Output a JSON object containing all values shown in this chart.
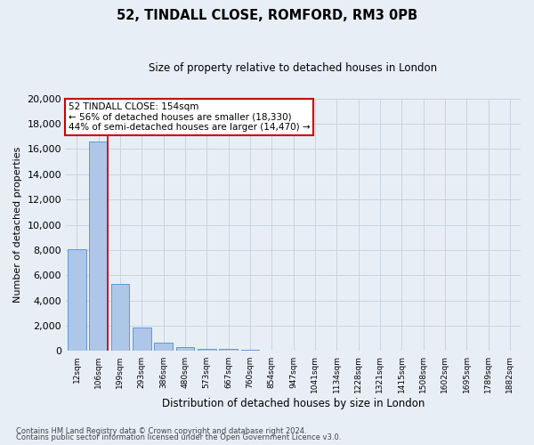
{
  "title": "52, TINDALL CLOSE, ROMFORD, RM3 0PB",
  "subtitle": "Size of property relative to detached houses in London",
  "xlabel": "Distribution of detached houses by size in London",
  "ylabel": "Number of detached properties",
  "footer_line1": "Contains HM Land Registry data © Crown copyright and database right 2024.",
  "footer_line2": "Contains public sector information licensed under the Open Government Licence v3.0.",
  "annotation_title": "52 TINDALL CLOSE: 154sqm",
  "annotation_line1": "← 56% of detached houses are smaller (18,330)",
  "annotation_line2": "44% of semi-detached houses are larger (14,470) →",
  "bar_labels": [
    "12sqm",
    "106sqm",
    "199sqm",
    "293sqm",
    "386sqm",
    "480sqm",
    "573sqm",
    "667sqm",
    "760sqm",
    "854sqm",
    "947sqm",
    "1041sqm",
    "1134sqm",
    "1228sqm",
    "1321sqm",
    "1415sqm",
    "1508sqm",
    "1602sqm",
    "1695sqm",
    "1789sqm",
    "1882sqm"
  ],
  "bar_values": [
    8050,
    16600,
    5350,
    1850,
    680,
    320,
    200,
    180,
    130,
    0,
    0,
    0,
    0,
    0,
    0,
    0,
    0,
    0,
    0,
    0,
    0
  ],
  "bar_color": "#aec6e8",
  "bar_edge_color": "#5b9bd5",
  "highlight_color_red": "#cc0000",
  "red_line_x": 1.45,
  "ylim": [
    0,
    20000
  ],
  "yticks": [
    0,
    2000,
    4000,
    6000,
    8000,
    10000,
    12000,
    14000,
    16000,
    18000,
    20000
  ],
  "grid_color": "#c8d4e0",
  "bg_color": "#e8eef5",
  "annotation_box_color": "#ffffff",
  "annotation_box_edge": "#cc0000",
  "figsize": [
    6.0,
    5.0
  ],
  "dpi": 100
}
